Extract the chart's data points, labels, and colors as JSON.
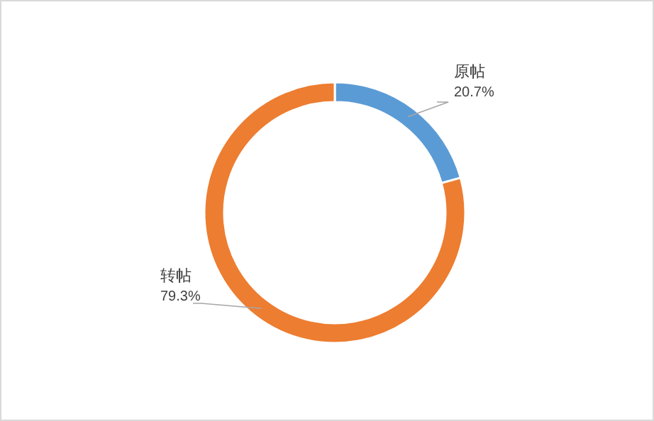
{
  "chart_data": {
    "type": "donut",
    "categories": [
      "原帖",
      "转帖"
    ],
    "values": [
      20.7,
      79.3
    ],
    "colors": [
      "#5b9bd5",
      "#ed7d31"
    ],
    "value_labels": [
      "20.7%",
      "79.3%"
    ]
  }
}
